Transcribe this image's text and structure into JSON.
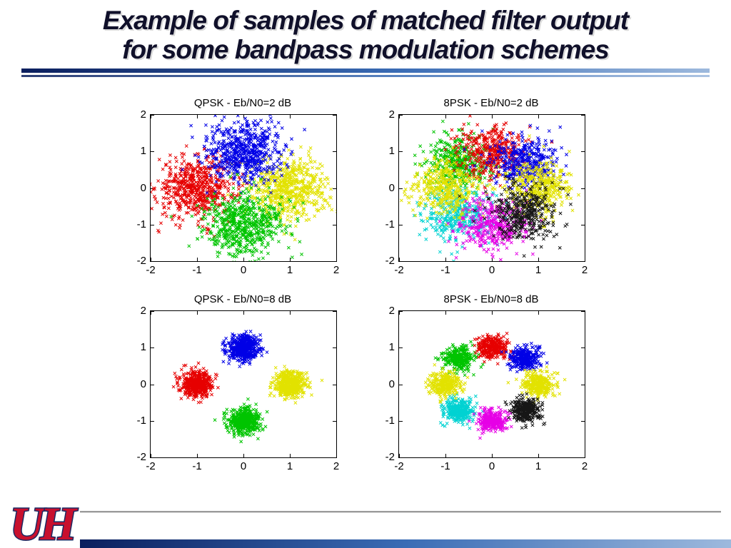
{
  "slide_title": {
    "line1": "Example of samples of matched filter output",
    "line2": "for some bandpass modulation schemes"
  },
  "accents": {
    "bar_dark": "#0b1f5e",
    "bar_mid": "#3a6cb5",
    "bar_light": "#9db9dd",
    "logo_red": "#c8102e",
    "logo_outline": "#1b2a63"
  },
  "footer": {
    "logo": {
      "u": "U",
      "h": "H"
    }
  },
  "chart_data": [
    {
      "type": "scatter",
      "title": "QPSK - Eb/N0=2 dB",
      "xlim": [
        -2,
        2
      ],
      "ylim": [
        -2,
        2
      ],
      "xticks": [
        -2,
        -1,
        0,
        1,
        2
      ],
      "yticks": [
        -2,
        -1,
        0,
        1,
        2
      ],
      "marker": "x",
      "noise_sigma": 0.42,
      "points_per_cluster": 600,
      "clusters": [
        {
          "label": "symbol-left-red",
          "x": -1,
          "y": 0,
          "color": "#e60000"
        },
        {
          "label": "symbol-right-yellow",
          "x": 1,
          "y": 0,
          "color": "#e2e200"
        },
        {
          "label": "symbol-top-blue",
          "x": 0,
          "y": 1,
          "color": "#0000e6"
        },
        {
          "label": "symbol-bottom-green",
          "x": 0,
          "y": -1,
          "color": "#00c400"
        }
      ]
    },
    {
      "type": "scatter",
      "title": "8PSK - Eb/N0=2 dB",
      "xlim": [
        -2,
        2
      ],
      "ylim": [
        -2,
        2
      ],
      "xticks": [
        -2,
        -1,
        0,
        1,
        2
      ],
      "yticks": [
        -2,
        -1,
        0,
        1,
        2
      ],
      "marker": "x",
      "noise_sigma": 0.36,
      "points_per_cluster": 380,
      "clusters": [
        {
          "label": "symbol-upperleft-green",
          "x": -0.707,
          "y": 0.707,
          "color": "#00c400"
        },
        {
          "label": "symbol-top-red",
          "x": 0,
          "y": 1,
          "color": "#e60000"
        },
        {
          "label": "symbol-upperright-blue",
          "x": 0.707,
          "y": 0.707,
          "color": "#0000e6"
        },
        {
          "label": "symbol-lowerleft-cyan",
          "x": -0.707,
          "y": -0.707,
          "color": "#00d2d2"
        },
        {
          "label": "symbol-left-yellow",
          "x": -1,
          "y": 0,
          "color": "#e2e200"
        },
        {
          "label": "symbol-right-yellow",
          "x": 1,
          "y": 0,
          "color": "#e2e200"
        },
        {
          "label": "symbol-bottom-magenta",
          "x": 0,
          "y": -1,
          "color": "#e600e6"
        },
        {
          "label": "symbol-lowerright-black",
          "x": 0.707,
          "y": -0.707,
          "color": "#161616"
        }
      ]
    },
    {
      "type": "scatter",
      "title": "QPSK - Eb/N0=8 dB",
      "xlim": [
        -2,
        2
      ],
      "ylim": [
        -2,
        2
      ],
      "xticks": [
        -2,
        -1,
        0,
        1,
        2
      ],
      "yticks": [
        -2,
        -1,
        0,
        1,
        2
      ],
      "marker": "x",
      "noise_sigma": 0.17,
      "points_per_cluster": 480,
      "clusters": [
        {
          "label": "symbol-left-red",
          "x": -1,
          "y": 0,
          "color": "#e60000"
        },
        {
          "label": "symbol-right-yellow",
          "x": 1,
          "y": 0,
          "color": "#e2e200"
        },
        {
          "label": "symbol-top-blue",
          "x": 0,
          "y": 1,
          "color": "#0000e6"
        },
        {
          "label": "symbol-bottom-green",
          "x": 0,
          "y": -1,
          "color": "#00c400"
        }
      ]
    },
    {
      "type": "scatter",
      "title": "8PSK - Eb/N0=8 dB",
      "xlim": [
        -2,
        2
      ],
      "ylim": [
        -2,
        2
      ],
      "xticks": [
        -2,
        -1,
        0,
        1,
        2
      ],
      "yticks": [
        -2,
        -1,
        0,
        1,
        2
      ],
      "marker": "x",
      "noise_sigma": 0.16,
      "points_per_cluster": 300,
      "clusters": [
        {
          "label": "symbol-upperleft-green",
          "x": -0.707,
          "y": 0.707,
          "color": "#00c400"
        },
        {
          "label": "symbol-top-red",
          "x": 0,
          "y": 1,
          "color": "#e60000"
        },
        {
          "label": "symbol-upperright-blue",
          "x": 0.707,
          "y": 0.707,
          "color": "#0000e6"
        },
        {
          "label": "symbol-lowerleft-cyan",
          "x": -0.707,
          "y": -0.707,
          "color": "#00d2d2"
        },
        {
          "label": "symbol-left-yellow",
          "x": -1,
          "y": 0,
          "color": "#e2e200"
        },
        {
          "label": "symbol-right-yellow",
          "x": 1,
          "y": 0,
          "color": "#e2e200"
        },
        {
          "label": "symbol-bottom-magenta",
          "x": 0,
          "y": -1,
          "color": "#e600e6"
        },
        {
          "label": "symbol-lowerright-black",
          "x": 0.707,
          "y": -0.707,
          "color": "#161616"
        }
      ]
    }
  ]
}
